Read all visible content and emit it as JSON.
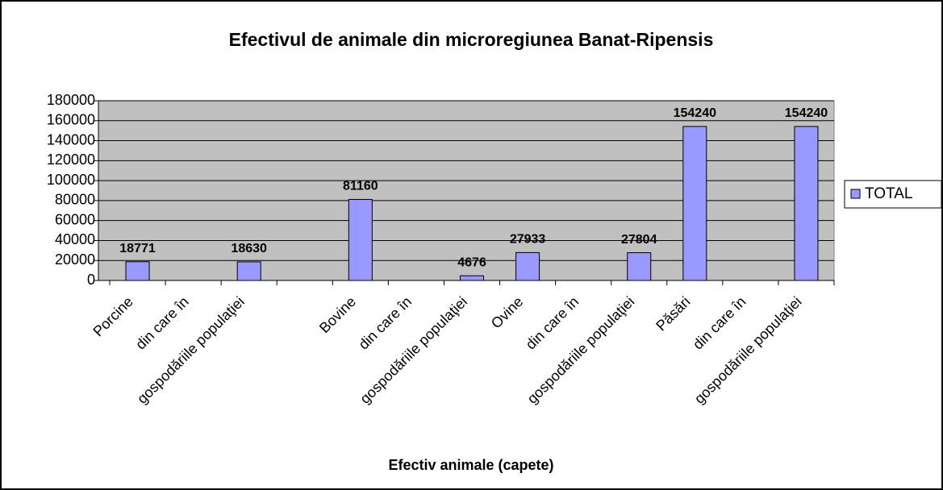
{
  "chart_data": {
    "type": "bar",
    "title": "Efectivul de animale din microregiunea Banat-Ripensis",
    "x_label": "Efectiv animale (capete)",
    "categories": [
      "Porcine",
      "din care în",
      "gospodăriile populaţiei",
      null,
      "Bovine",
      "din care în",
      "gospodăriile populaţiei",
      "Ovine",
      "din care în",
      "gospodăriile populaţiei",
      "Păsări",
      "din care în",
      "gospodăriile populaţiei"
    ],
    "series": [
      {
        "name": "TOTAL",
        "color": "#9999ff",
        "values": [
          18771,
          null,
          18630,
          null,
          81160,
          null,
          4676,
          27933,
          null,
          27804,
          154240,
          null,
          154240
        ]
      }
    ],
    "ylim": [
      0,
      180000
    ],
    "yticks": [
      0,
      20000,
      40000,
      60000,
      80000,
      100000,
      120000,
      140000,
      160000,
      180000
    ],
    "grid": true,
    "legend": "right"
  }
}
